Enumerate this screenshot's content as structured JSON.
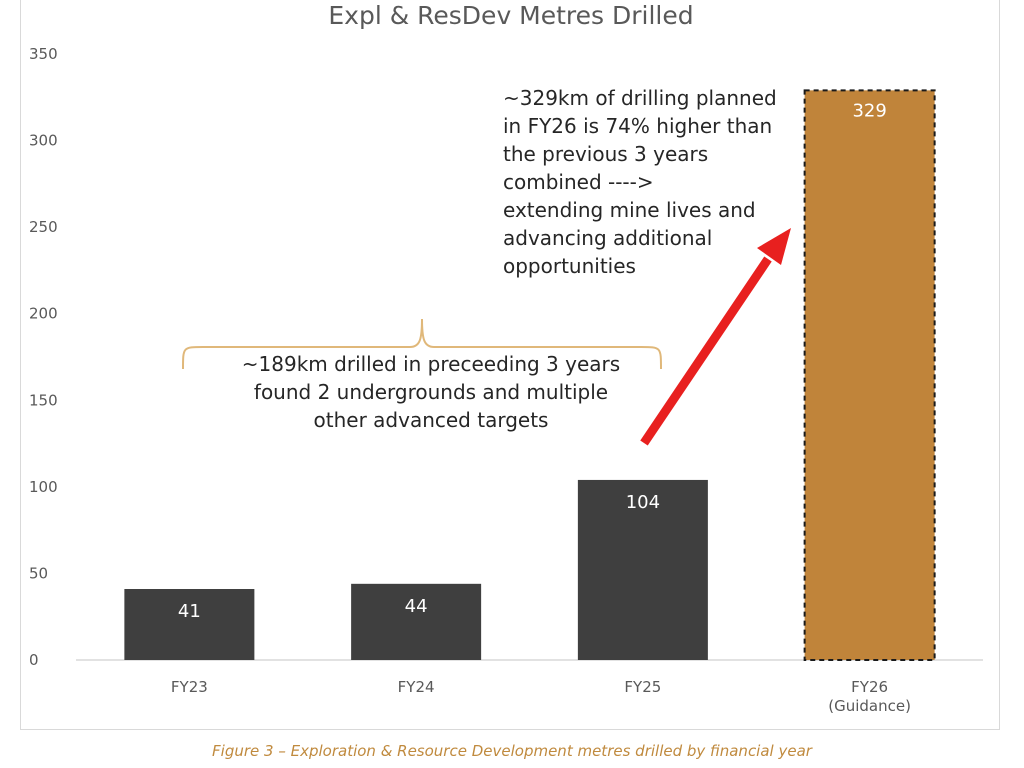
{
  "chart_data": {
    "type": "bar",
    "title": "Expl & ResDev Metres Drilled",
    "categories": [
      "FY23",
      "FY24",
      "FY25",
      "FY26\n(Guidance)"
    ],
    "values": [
      41,
      44,
      104,
      329
    ],
    "data_labels": [
      "41",
      "44",
      "104",
      "329"
    ],
    "yticks": [
      0,
      50,
      100,
      150,
      200,
      250,
      300,
      350
    ],
    "ylim": [
      0,
      350
    ],
    "xlabel": "",
    "ylabel": "",
    "grid": false,
    "legend": "none",
    "highlight_category": "FY26\n(Guidance)",
    "colors": {
      "actual": "#3f3f3f",
      "guidance": "#c0843a",
      "brace": "#e0b87a",
      "arrow": "#e8201f"
    },
    "annotations": {
      "brace_text": [
        "~189km drilled in preceeding 3 years",
        "found 2 undergrounds and multiple",
        "other advanced targets"
      ],
      "arrow_text": [
        "~329km of drilling planned",
        "in FY26 is 74% higher than",
        "the previous 3 years",
        "combined ---->",
        "extending mine lives and",
        "advancing additional",
        "opportunities"
      ]
    }
  },
  "caption": "Figure 3 – Exploration & Resource Development metres drilled by financial year"
}
